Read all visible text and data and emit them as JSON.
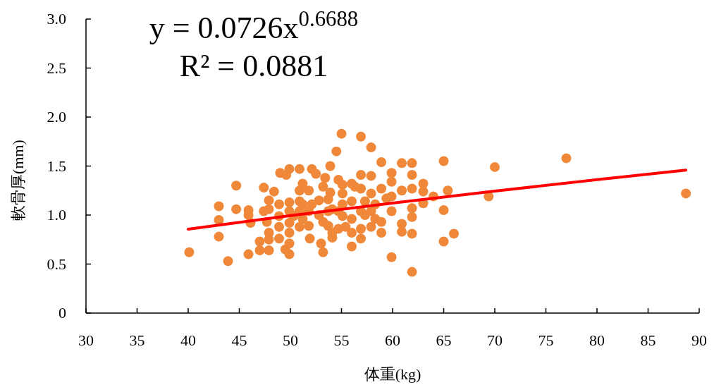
{
  "chart_data": {
    "type": "scatter",
    "xlabel": "体重(kg)",
    "ylabel": "軟骨厚(mm)",
    "annotations": [
      "y = 0.0726x$^{0.6688}$",
      "R² = 0.0881"
    ],
    "xlim": [
      30,
      90
    ],
    "xticks": [
      30,
      35,
      40,
      45,
      50,
      55,
      60,
      65,
      70,
      75,
      80,
      85,
      90
    ],
    "ylim": [
      0,
      3
    ],
    "yticks": [
      0,
      {
        "value": 0.5,
        "label": "0.5"
      },
      {
        "value": 1,
        "label": "1.0"
      },
      {
        "value": 1.5,
        "label": "1.5"
      },
      {
        "value": 2,
        "label": "2.0"
      },
      {
        "value": 2.5,
        "label": "2.5"
      },
      {
        "value": 3,
        "label": "3.0"
      }
    ],
    "grid": false,
    "series": [
      {
        "marker": "circle",
        "color": "#f0883a",
        "x": [
          40.1,
          43.0,
          43.0,
          43.0,
          43.9,
          44.7,
          44.7,
          45.9,
          45.9,
          46.1,
          45.9,
          47.0,
          47.0,
          47.4,
          47.4,
          47.7,
          47.9,
          47.9,
          47.9,
          47.9,
          47.9,
          48.4,
          48.9,
          48.9,
          48.9,
          48.9,
          49.0,
          49.6,
          49.5,
          49.9,
          49.9,
          49.9,
          49.9,
          49.9,
          49.9,
          49.9,
          50.3,
          50.9,
          50.9,
          50.9,
          50.9,
          50.9,
          51.2,
          51.2,
          51.2,
          51.8,
          51.8,
          51.8,
          51.9,
          52.1,
          52.1,
          52.5,
          52.8,
          52.8,
          53.0,
          53.2,
          53.2,
          53.2,
          53.4,
          53.7,
          53.7,
          53.7,
          53.9,
          53.9,
          54.1,
          54.1,
          54.1,
          54.5,
          54.7,
          54.7,
          54.7,
          55.0,
          55.1,
          55.1,
          55.1,
          55.1,
          55.4,
          56.0,
          56.0,
          56.0,
          56.0,
          56.0,
          56.3,
          56.9,
          56.9,
          56.9,
          56.9,
          56.9,
          56.9,
          57.3,
          57.3,
          57.9,
          57.9,
          57.9,
          57.9,
          57.9,
          58.3,
          58.3,
          58.9,
          58.9,
          58.9,
          58.9,
          59.4,
          59.9,
          59.9,
          59.9,
          59.9,
          59.9,
          60.9,
          60.9,
          60.9,
          60.9,
          61.9,
          61.9,
          61.9,
          61.9,
          61.9,
          61.9,
          61.9,
          63.0,
          63.0,
          63.0,
          64.0,
          65.0,
          65.0,
          65.0,
          65.4,
          66.0,
          69.4,
          70.0,
          77.0,
          88.7
        ],
        "values": [
          0.62,
          1.09,
          0.95,
          0.78,
          0.53,
          1.3,
          1.06,
          1.05,
          1.0,
          0.92,
          0.6,
          0.73,
          0.64,
          1.28,
          1.04,
          0.93,
          1.15,
          1.06,
          0.82,
          0.75,
          0.64,
          1.24,
          1.11,
          0.99,
          0.88,
          0.76,
          1.43,
          1.41,
          0.65,
          1.47,
          1.13,
          1.04,
          0.92,
          0.82,
          0.71,
          0.6,
          0.99,
          1.47,
          1.25,
          1.14,
          1.04,
          0.88,
          1.32,
          1.11,
          0.96,
          1.25,
          1.04,
          0.89,
          0.76,
          1.47,
          1.11,
          1.42,
          1.15,
          1.0,
          0.71,
          0.62,
          1.29,
          0.93,
          1.38,
          1.16,
          1.04,
          0.89,
          1.5,
          1.23,
          1.06,
          0.82,
          0.77,
          1.65,
          1.36,
          1.04,
          0.86,
          1.83,
          1.22,
          1.31,
          1.11,
          0.99,
          0.88,
          1.32,
          1.14,
          0.96,
          0.82,
          0.68,
          1.29,
          1.8,
          1.41,
          1.27,
          1.04,
          0.86,
          0.76,
          1.14,
          1.0,
          1.69,
          1.4,
          1.22,
          1.04,
          0.88,
          1.11,
          0.96,
          1.54,
          1.27,
          0.93,
          0.82,
          1.17,
          1.43,
          1.34,
          1.19,
          1.04,
          0.57,
          1.53,
          1.25,
          0.91,
          0.83,
          1.53,
          1.41,
          1.27,
          1.07,
          0.98,
          0.81,
          0.42,
          1.32,
          1.24,
          1.12,
          1.19,
          1.55,
          1.05,
          0.73,
          1.25,
          0.81,
          1.19,
          1.49,
          1.58,
          1.22
        ]
      },
      {
        "type": "line",
        "color": "#ff0000",
        "line_style": "solid",
        "marker": "none",
        "x": [
          40,
          50,
          60,
          70,
          80,
          88.7
        ],
        "values": [
          0.856,
          0.994,
          1.122,
          1.244,
          1.361,
          1.459
        ]
      }
    ]
  }
}
